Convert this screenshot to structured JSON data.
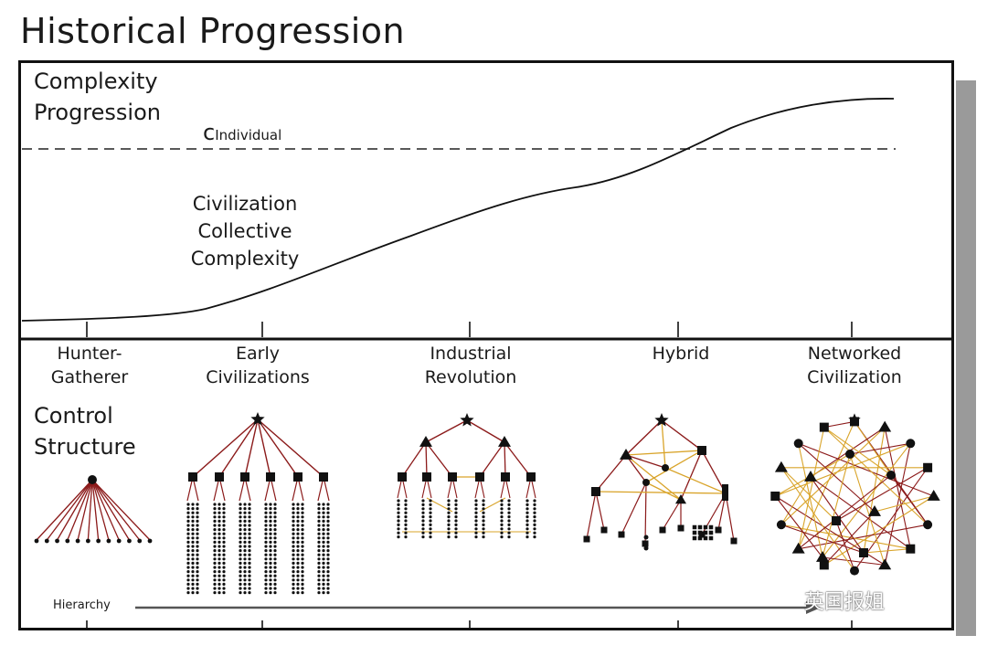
{
  "title": "Historical Progression",
  "complexity_label": "Complexity\nProgression",
  "c_individual": {
    "c": "c",
    "sub": "Individual"
  },
  "curve_label": "Civilization\nCollective\nComplexity",
  "control_label": "Control\nStructure",
  "hierarchy_label": "Hierarchy",
  "stages": [
    {
      "label": "Hunter-\nGatherer",
      "structure": "single-leader-fan"
    },
    {
      "label": "Early\nCivilizations",
      "structure": "two-level-hierarchy"
    },
    {
      "label": "Industrial\nRevolution",
      "structure": "three-level-hierarchy"
    },
    {
      "label": "Hybrid",
      "structure": "mixed-hierarchy-network"
    },
    {
      "label": "Networked\nCivilization",
      "structure": "network"
    }
  ],
  "watermark": "英国报姐",
  "colors": {
    "hierarchy_link": "#8b1a1a",
    "network_link": "#d9a42a",
    "node": "#111111",
    "frame_shadow": "#9a9a9a"
  }
}
